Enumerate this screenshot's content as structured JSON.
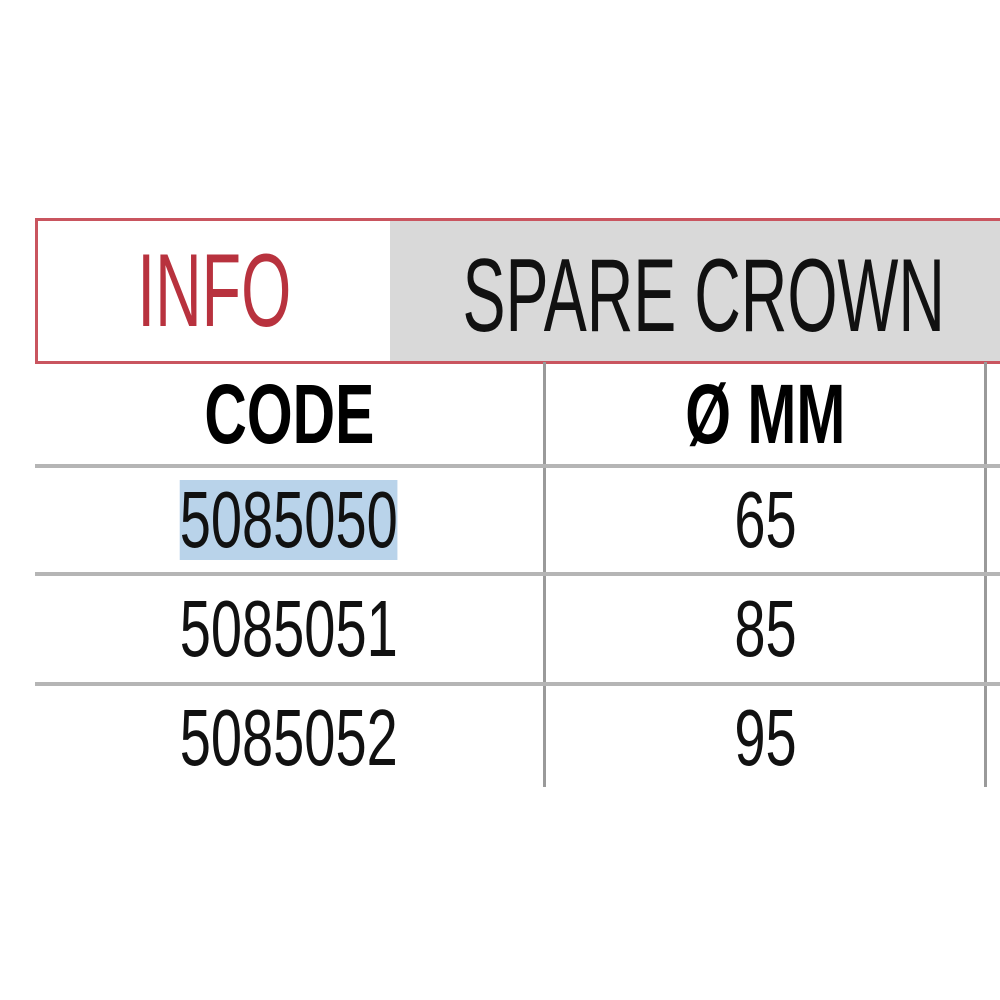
{
  "table": {
    "title_info": "INFO",
    "title_product": "SPARE CROWN",
    "columns": [
      "CODE",
      "Ø MM"
    ],
    "rows": [
      {
        "code": "5085050",
        "diameter_mm": "65",
        "selected": true
      },
      {
        "code": "5085051",
        "diameter_mm": "85"
      },
      {
        "code": "5085052",
        "diameter_mm": "95"
      }
    ]
  },
  "colors": {
    "accent": "#c9555f",
    "header_bg": "#d9d9d9",
    "selection": "#b9d3ea"
  }
}
